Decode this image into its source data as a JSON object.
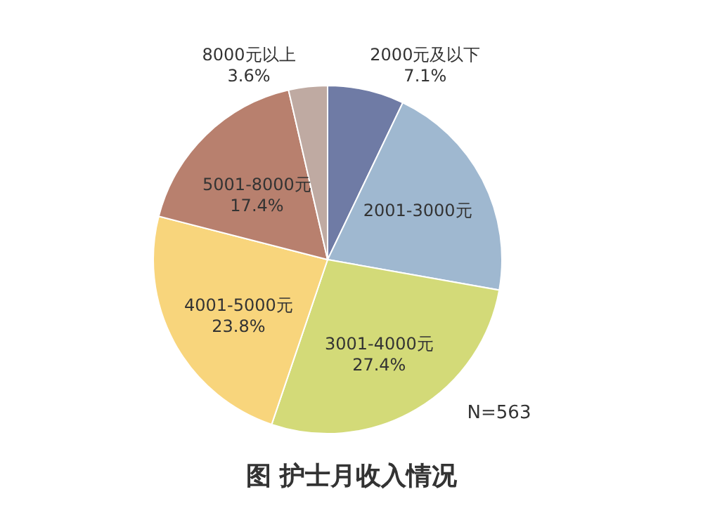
{
  "chart_data": {
    "type": "pie",
    "title": "图 护士月收入情况",
    "categories": [
      "2000元及以下",
      "2001-3000元",
      "3001-4000元",
      "4001-5000元",
      "5001-8000元",
      "8000元以上"
    ],
    "values": [
      7.1,
      20.7,
      27.4,
      23.8,
      17.4,
      3.6
    ],
    "value_labels": [
      "7.1%",
      null,
      "27.4%",
      "23.8%",
      "17.4%",
      "3.6%"
    ],
    "colors": [
      "#6f7ba5",
      "#9fb8d0",
      "#d3da78",
      "#f8d57c",
      "#b8806e",
      "#bfaaa2"
    ],
    "annotations": [
      "N=563"
    ]
  }
}
